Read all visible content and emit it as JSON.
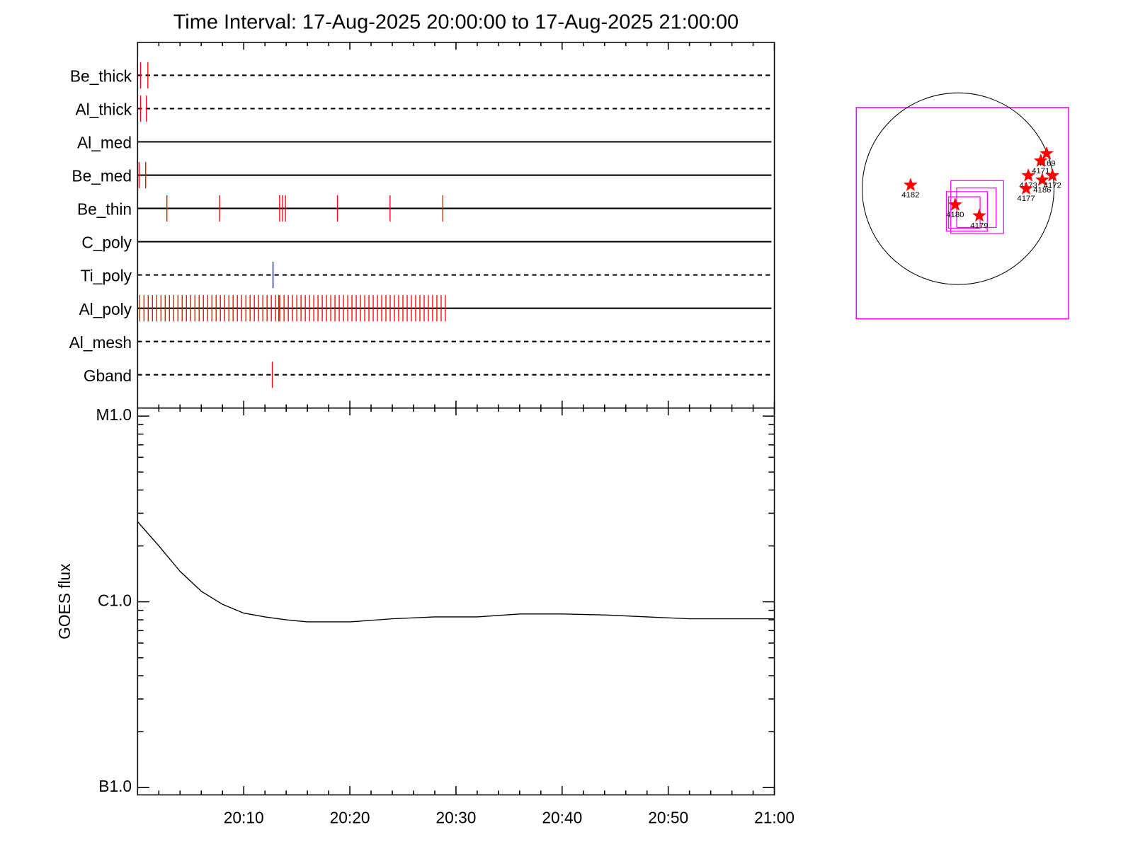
{
  "chart_data": [
    {
      "type": "event",
      "title": "Time Interval: 17-Aug-2025 20:00:00 to 17-Aug-2025 21:00:00",
      "xlim": [
        0,
        60
      ],
      "xticks": [
        10,
        20,
        30,
        40,
        50,
        60
      ],
      "xminorticks": [
        2,
        4,
        6,
        8,
        12,
        14,
        16,
        18,
        22,
        24,
        26,
        28,
        32,
        34,
        36,
        38,
        42,
        44,
        46,
        48,
        52,
        54,
        56,
        58
      ],
      "rows": [
        {
          "name": "Be_thick",
          "style": "dashed",
          "color": "#ff0000",
          "events": [
            0.28,
            0.97
          ]
        },
        {
          "name": "Al_thick",
          "style": "dashed",
          "color": "#ff0000",
          "events": [
            0.28,
            0.83
          ]
        },
        {
          "name": "Al_med",
          "style": "solid",
          "color": "#ff0000",
          "events": []
        },
        {
          "name": "Be_med",
          "style": "solid",
          "color": "#ff0000",
          "events": [
            0.14,
            0.76
          ]
        },
        {
          "name": "Be_thin",
          "style": "solid",
          "color": "#ff0000",
          "events": [
            2.76,
            7.72,
            13.38,
            13.66,
            13.93,
            18.83,
            23.79,
            28.76
          ]
        },
        {
          "name": "C_poly",
          "style": "solid",
          "color": "#ff0000",
          "events": []
        },
        {
          "name": "Ti_poly",
          "style": "dashed",
          "color": "#0000cc",
          "events": [
            12.76
          ]
        },
        {
          "name": "Al_poly",
          "style": "solid",
          "color": "#ff0000",
          "events": [
            0.2,
            0.6,
            1.0,
            1.4,
            1.8,
            2.2,
            2.6,
            3.0,
            3.4,
            3.8,
            4.2,
            4.6,
            5.0,
            5.4,
            5.8,
            6.2,
            6.6,
            7.0,
            7.4,
            7.8,
            8.2,
            8.6,
            9.0,
            9.4,
            9.8,
            10.2,
            10.6,
            11.0,
            11.4,
            11.8,
            12.2,
            12.6,
            13.0,
            13.3,
            13.4,
            13.8,
            14.2,
            14.6,
            15.0,
            15.4,
            15.8,
            16.2,
            16.6,
            17.0,
            17.4,
            17.8,
            18.2,
            18.6,
            19.0,
            19.4,
            19.8,
            20.2,
            20.6,
            21.0,
            21.4,
            21.8,
            22.2,
            22.6,
            23.0,
            23.4,
            23.8,
            24.2,
            24.6,
            25.0,
            25.4,
            25.8,
            26.2,
            26.6,
            27.0,
            27.4,
            27.8,
            28.2,
            28.6,
            29.0
          ]
        },
        {
          "name": "Al_mesh",
          "style": "dashed",
          "color": "#ff0000",
          "events": []
        },
        {
          "name": "Gband",
          "style": "dashed",
          "color": "#ff0000",
          "events": [
            12.69
          ]
        }
      ]
    },
    {
      "type": "line",
      "ylabel": "GOES flux",
      "log_y": true,
      "color": "#000000",
      "xlim": [
        0,
        60
      ],
      "xticks": [
        {
          "value": 10,
          "label": "20:10"
        },
        {
          "value": 20,
          "label": "20:20"
        },
        {
          "value": 30,
          "label": "20:30"
        },
        {
          "value": 40,
          "label": "20:40"
        },
        {
          "value": 50,
          "label": "20:50"
        },
        {
          "value": 60,
          "label": "21:00"
        }
      ],
      "xminorticks": [
        2,
        4,
        6,
        8,
        12,
        14,
        16,
        18,
        22,
        24,
        26,
        28,
        32,
        34,
        36,
        38,
        42,
        44,
        46,
        48,
        52,
        54,
        56,
        58
      ],
      "ylim": [
        1e-07,
        1e-05
      ],
      "yticks": [
        {
          "value": 1e-07,
          "label": "B1.0"
        },
        {
          "value": 1e-06,
          "label": "C1.0"
        },
        {
          "value": 1e-05,
          "label": "M1.0"
        }
      ],
      "yminorticks": [
        2e-07,
        3e-07,
        4e-07,
        5e-07,
        6e-07,
        7e-07,
        8e-07,
        9e-07,
        2e-06,
        3e-06,
        4e-06,
        5e-06,
        6e-06,
        7e-06,
        8e-06,
        9e-06
      ],
      "x": [
        0,
        2,
        4,
        6,
        8,
        10,
        12,
        14,
        16,
        18,
        20,
        24,
        28,
        32,
        36,
        40,
        44,
        48,
        52,
        56,
        60
      ],
      "values": [
        2.7e-06,
        2e-06,
        1.46e-06,
        1.14e-06,
        9.7e-07,
        8.7e-07,
        8.3e-07,
        8e-07,
        7.8e-07,
        7.8e-07,
        7.8e-07,
        8.1e-07,
        8.3e-07,
        8.3e-07,
        8.6e-07,
        8.6e-07,
        8.5e-07,
        8.3e-07,
        8.1e-07,
        8.1e-07,
        8.1e-07
      ]
    },
    {
      "type": "map",
      "xlim": [
        -1008,
        1095
      ],
      "ylim": [
        -1290,
        805
      ],
      "limb_radius": 950,
      "frame_color": "#ff00ff",
      "limb_color": "#000000",
      "point_color": "#ff0000",
      "boxes": [
        [
          -72,
          80,
          451,
          -443
        ],
        [
          -14,
          7,
          377,
          -384
        ],
        [
          -116,
          -29,
          290,
          -421
        ],
        [
          -94,
          -80,
          218,
          -392
        ]
      ],
      "points": [
        {
          "label": "4182",
          "x": -471,
          "y": 36
        },
        {
          "label": "4180",
          "x": -29,
          "y": -160
        },
        {
          "label": "4179",
          "x": 210,
          "y": -268
        },
        {
          "label": "4169",
          "x": 877,
          "y": 348
        },
        {
          "label": "4171",
          "x": 819,
          "y": 276
        },
        {
          "label": "4173",
          "x": 696,
          "y": 130
        },
        {
          "label": "4186",
          "x": 834,
          "y": 87
        },
        {
          "label": "4172",
          "x": 935,
          "y": 130
        },
        {
          "label": "4177",
          "x": 674,
          "y": 0
        }
      ]
    }
  ]
}
